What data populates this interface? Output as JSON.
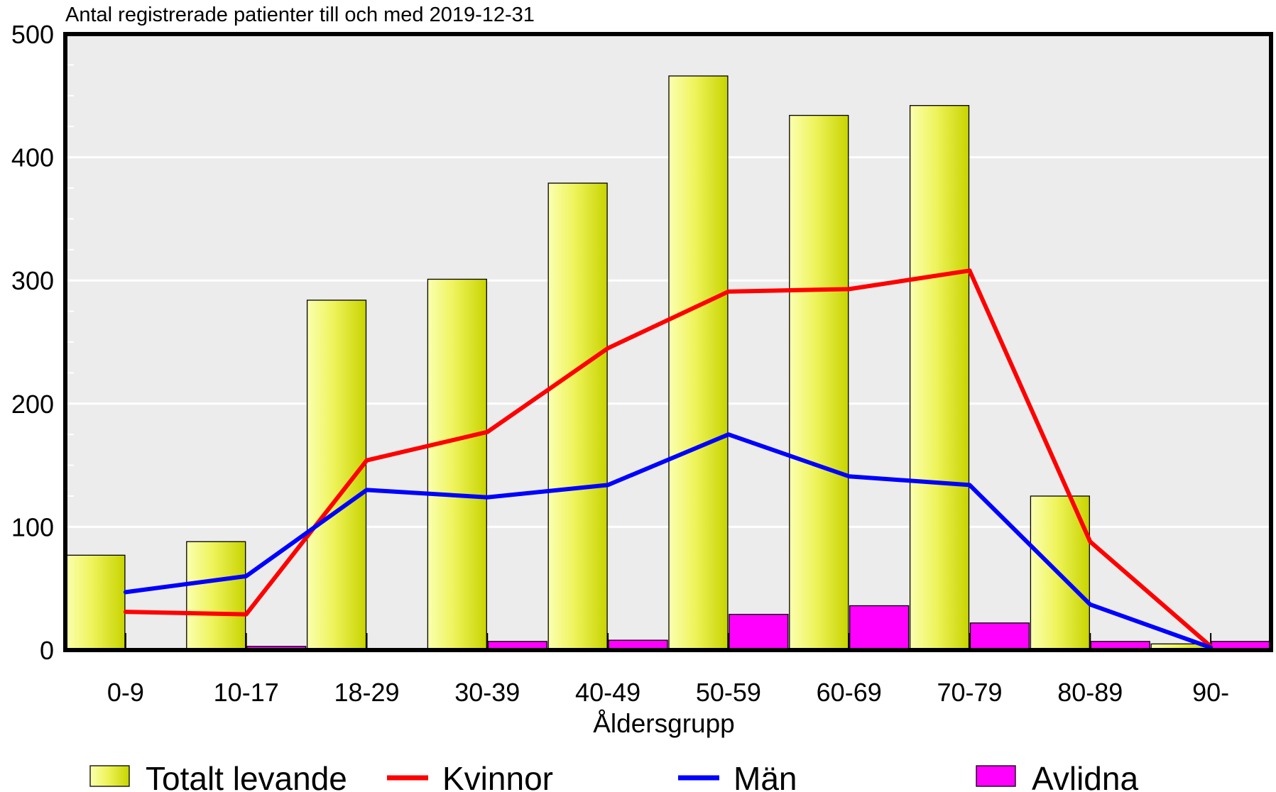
{
  "chart_data": {
    "type": "bar",
    "title": "Antal registrerade patienter till och med 2019-12-31",
    "xlabel": "Åldersgrupp",
    "ylabel": "",
    "ylim": [
      0,
      500
    ],
    "yticks": [
      0,
      100,
      200,
      300,
      400,
      500
    ],
    "grid": true,
    "legend_position": "bottom",
    "categories": [
      "0-9",
      "10-17",
      "18-29",
      "30-39",
      "40-49",
      "50-59",
      "60-69",
      "70-79",
      "80-89",
      "90-"
    ],
    "series": [
      {
        "name": "Totalt levande",
        "kind": "bar",
        "color": "#d9e619",
        "values": [
          77,
          88,
          284,
          301,
          379,
          466,
          434,
          442,
          125,
          5
        ]
      },
      {
        "name": "Kvinnor",
        "kind": "line",
        "color": "#ff0000",
        "values": [
          31,
          29,
          154,
          177,
          245,
          291,
          293,
          308,
          88,
          3
        ]
      },
      {
        "name": "Män",
        "kind": "line",
        "color": "#0000ff",
        "values": [
          47,
          60,
          130,
          124,
          134,
          175,
          141,
          134,
          37,
          2
        ]
      },
      {
        "name": "Avlidna",
        "kind": "bar",
        "color": "#ff00ff",
        "values": [
          0,
          3,
          0,
          7,
          8,
          29,
          36,
          22,
          7,
          7
        ]
      }
    ]
  }
}
